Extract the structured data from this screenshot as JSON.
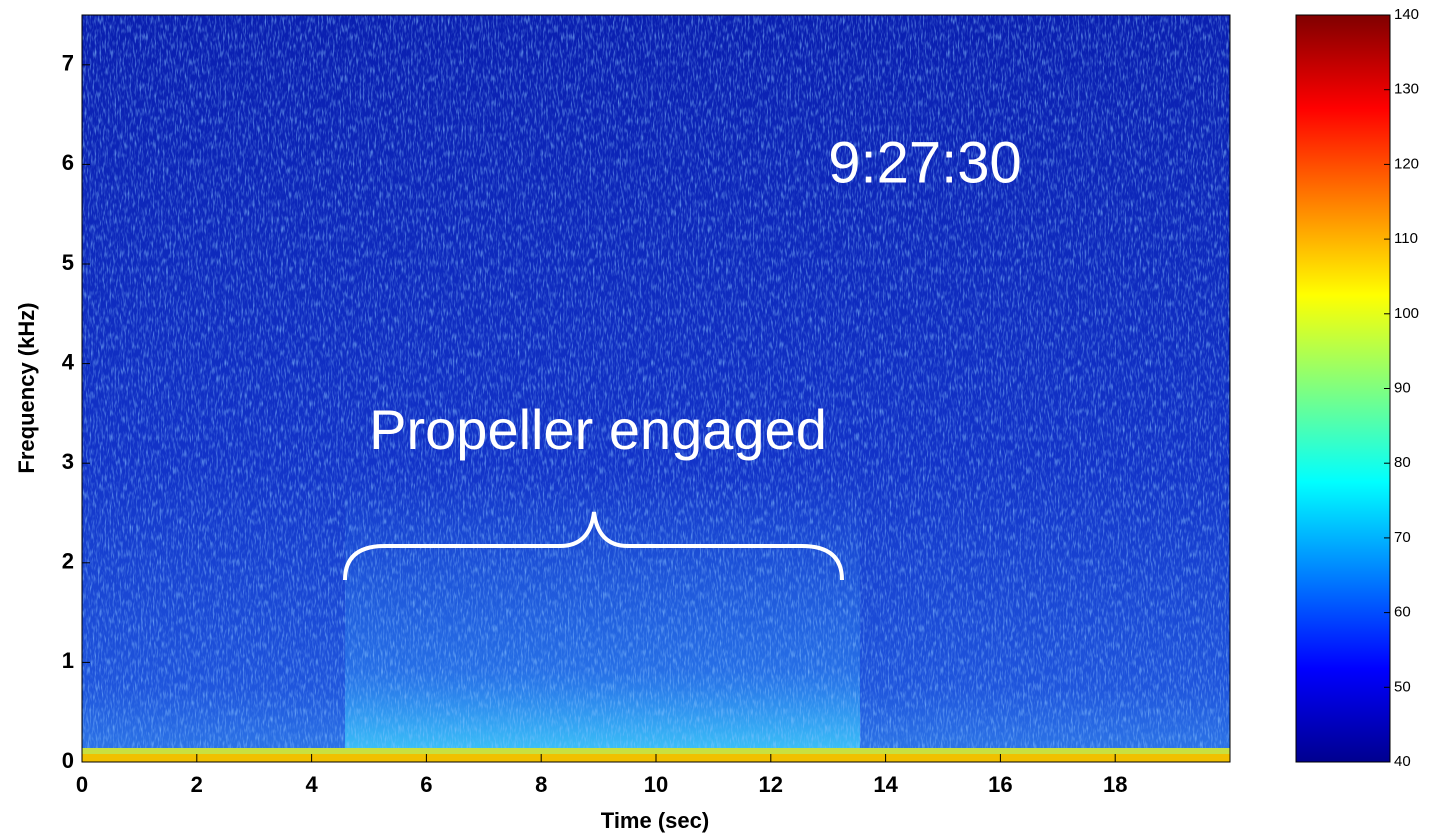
{
  "chart_data": {
    "type": "spectrogram",
    "xlabel": "Time (sec)",
    "ylabel": "Frequency (kHz)",
    "xlim": [
      0,
      20
    ],
    "xticks": [
      0,
      2,
      4,
      6,
      8,
      10,
      12,
      14,
      16,
      18
    ],
    "ylim": [
      0,
      7.5
    ],
    "yticks": [
      0,
      1,
      2,
      3,
      4,
      5,
      6,
      7
    ],
    "colormap": "jet",
    "colorbar": {
      "lim": [
        40,
        140
      ],
      "ticks": [
        40,
        50,
        60,
        70,
        80,
        90,
        100,
        110,
        120,
        130,
        140
      ]
    },
    "annotations": [
      {
        "text": "9:27:30"
      },
      {
        "text": "Propeller engaged"
      }
    ]
  }
}
